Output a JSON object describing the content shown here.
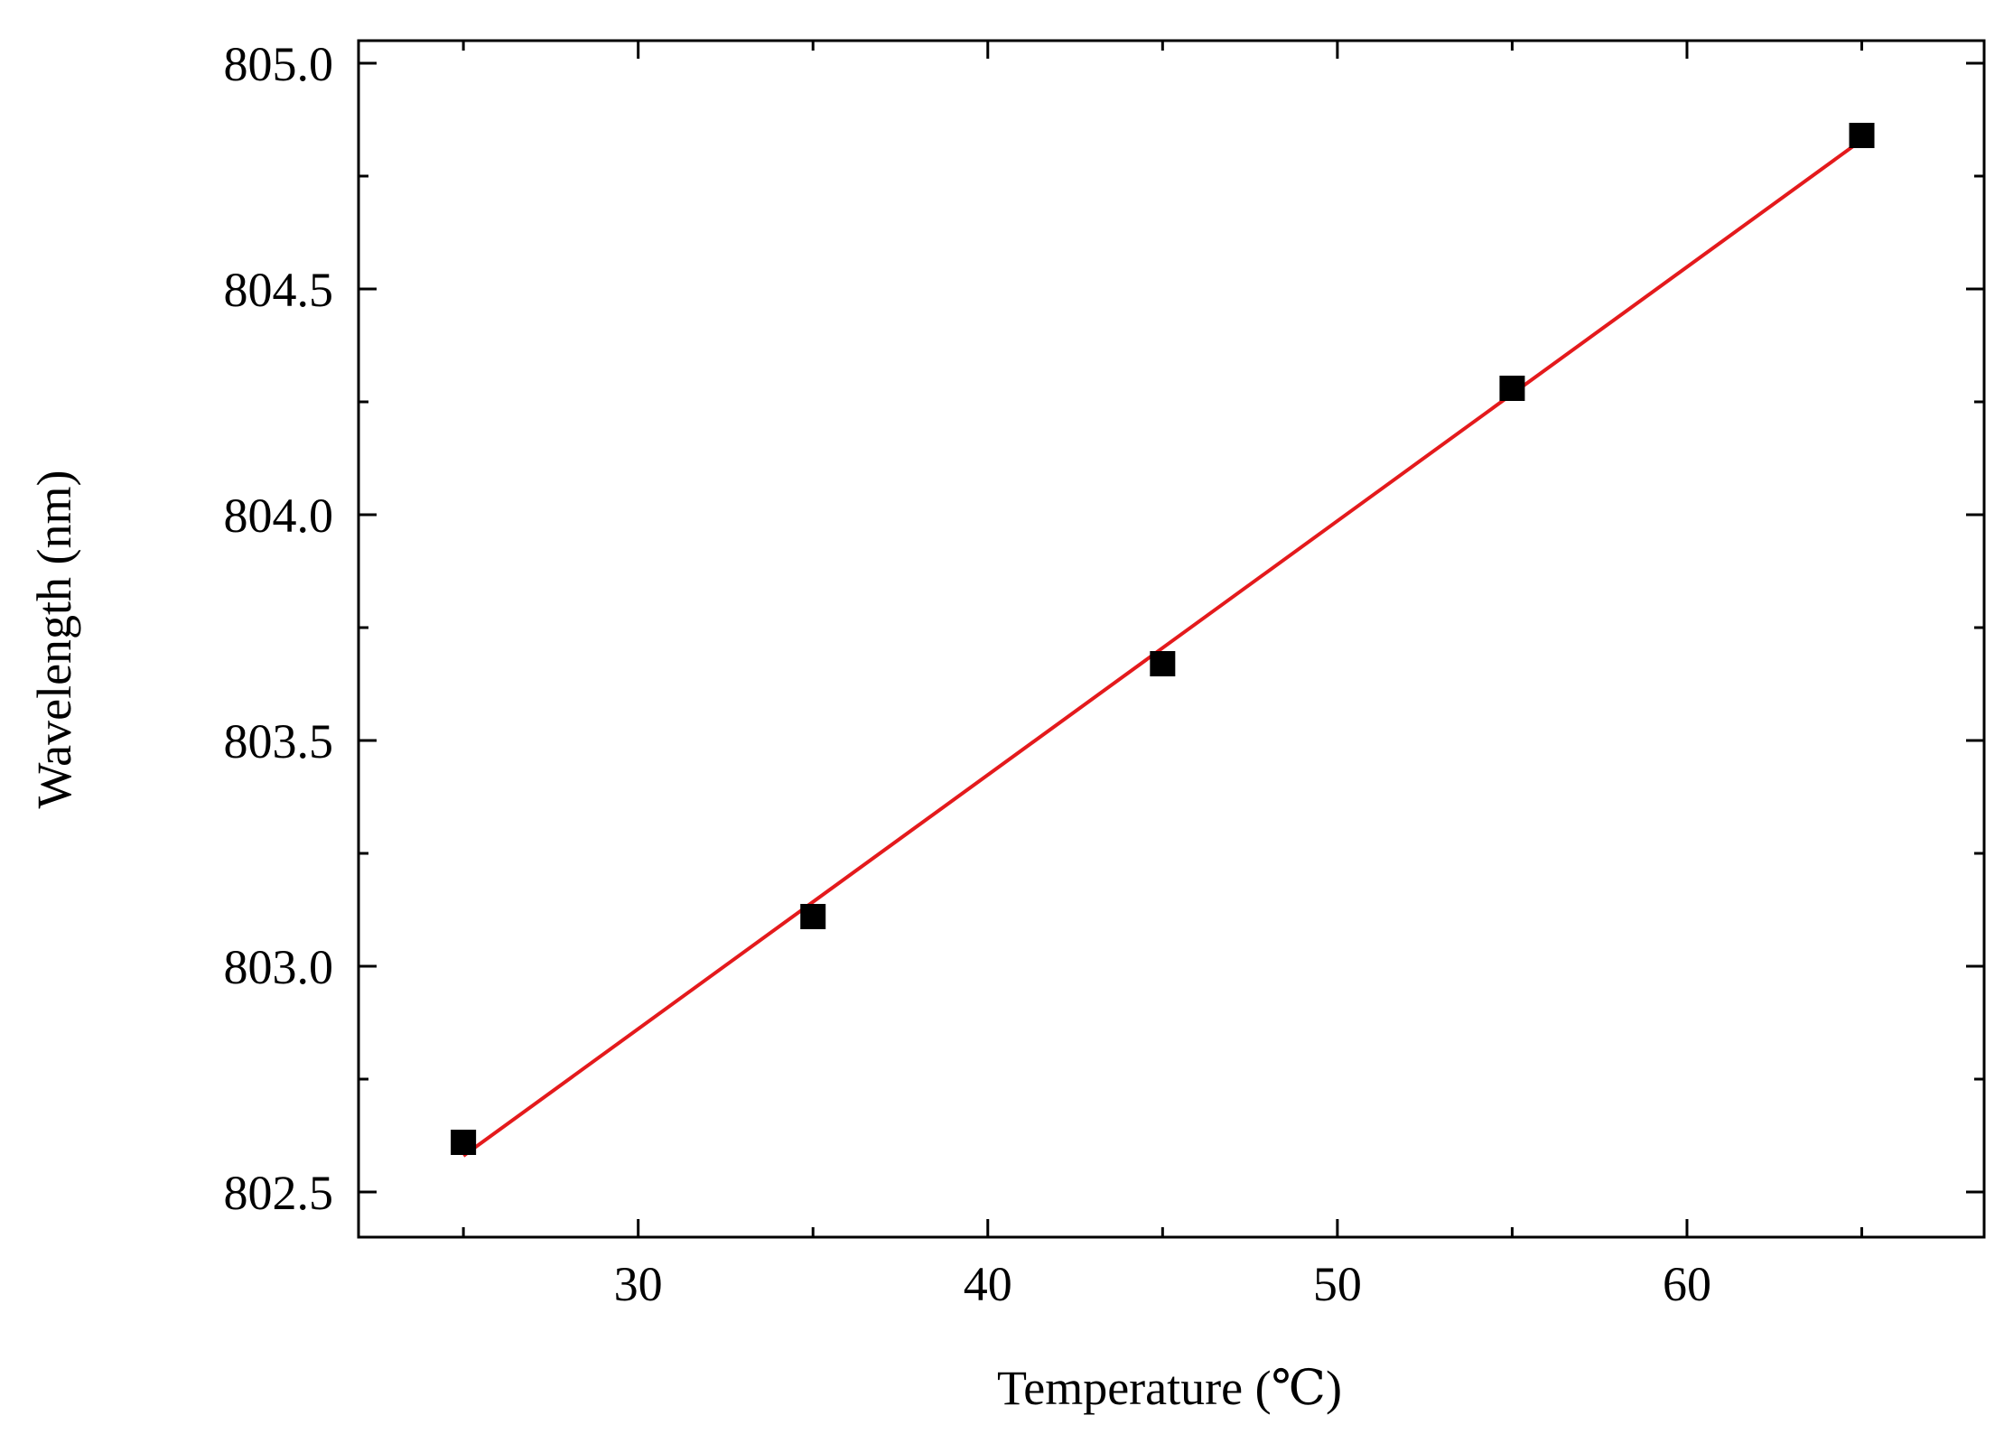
{
  "chart_data": {
    "type": "scatter",
    "title": "",
    "xlabel": "Temperature (℃)",
    "ylabel": "Wavelength (nm)",
    "xlim": [
      22,
      68.5
    ],
    "ylim": [
      802.4,
      805.05
    ],
    "x_major_ticks": [
      30,
      40,
      50,
      60
    ],
    "x_minor_ticks": [
      25,
      35,
      45,
      55,
      65
    ],
    "y_major_ticks": [
      802.5,
      803.0,
      803.5,
      804.0,
      804.5,
      805.0
    ],
    "y_minor_ticks": [
      802.75,
      803.25,
      803.75,
      804.25,
      804.75
    ],
    "x_tick_labels": [
      "30",
      "40",
      "50",
      "60"
    ],
    "y_tick_labels": [
      "802.5",
      "803.0",
      "803.5",
      "804.0",
      "804.5",
      "805.0"
    ],
    "grid": false,
    "series": [
      {
        "type": "scatter",
        "marker": "square",
        "color": "#000000",
        "x": [
          25,
          35,
          45,
          55,
          65
        ],
        "y": [
          802.61,
          803.11,
          803.67,
          804.28,
          804.84
        ]
      },
      {
        "type": "line",
        "color": "#e41a1c",
        "x": [
          25,
          65
        ],
        "y": [
          802.58,
          804.83
        ]
      }
    ]
  }
}
